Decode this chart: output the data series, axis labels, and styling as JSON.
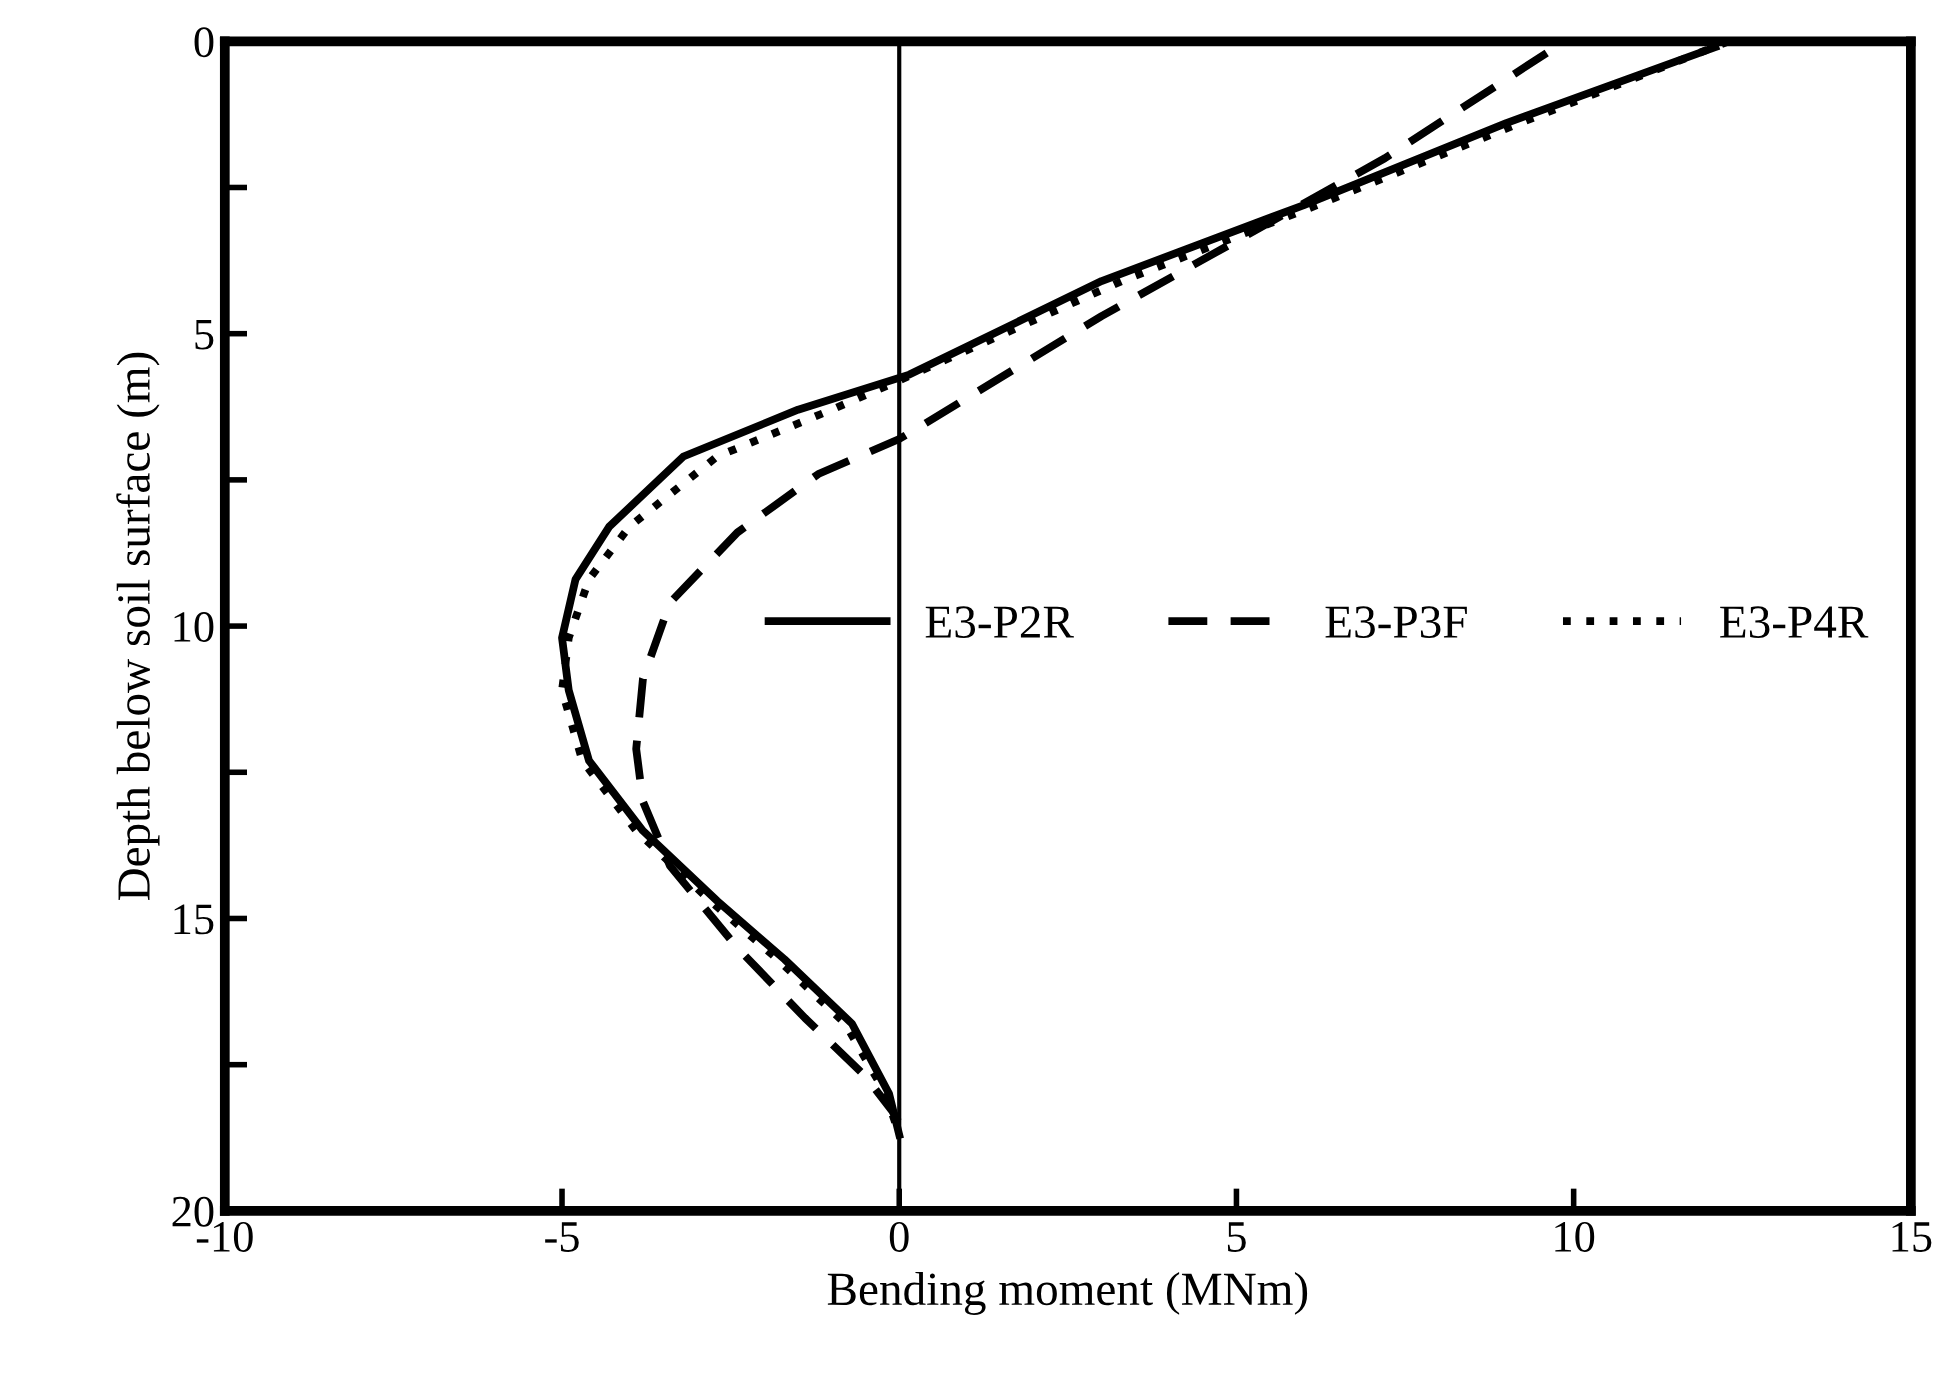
{
  "chart_data": {
    "type": "line",
    "xlabel": "Bending moment (MNm)",
    "ylabel": "Depth below soil surface (m)",
    "xlim": [
      -10,
      15
    ],
    "xticks": [
      -10,
      -5,
      0,
      5,
      10,
      15
    ],
    "ylim": [
      20,
      0
    ],
    "yticks": [
      0,
      {
        "value": 2.5,
        "label": null
      },
      5,
      {
        "value": 7.5,
        "label": null
      },
      10,
      {
        "value": 12.5,
        "label": null
      },
      15,
      {
        "value": 17.5,
        "label": null
      },
      20
    ],
    "grid": false,
    "legend": "right",
    "marker": "none",
    "ref_lines": [
      {
        "axis": "x",
        "value": 0,
        "color": "#000000",
        "line_style": "solid"
      }
    ],
    "series": [
      {
        "name": "E3-P2R",
        "color": "#000000",
        "line_style": "solid",
        "x": [
          12.1,
          9.0,
          6.0,
          3.0,
          0.15,
          -1.5,
          -3.2,
          -4.3,
          -4.8,
          -5.0,
          -4.9,
          -4.6,
          -3.8,
          -2.7,
          -1.7,
          -0.7,
          -0.15,
          0
        ],
        "values": [
          0.1,
          1.4,
          2.8,
          4.1,
          5.7,
          6.3,
          7.1,
          8.3,
          9.2,
          10.2,
          11.1,
          12.3,
          13.5,
          14.7,
          15.7,
          16.8,
          18.0,
          18.7
        ]
      },
      {
        "name": "E3-P3F",
        "color": "#000000",
        "line_style": "dashed",
        "x": [
          9.6,
          7.2,
          3.0,
          0.15,
          0,
          -1.2,
          -2.4,
          -3.4,
          -3.8,
          -3.9,
          -3.8,
          -3.4,
          -2.4,
          -1.4,
          -0.5,
          -0.1,
          0
        ],
        "values": [
          0.2,
          2.0,
          4.7,
          6.7,
          6.8,
          7.4,
          8.4,
          9.6,
          10.9,
          12.1,
          13.0,
          14.1,
          15.5,
          16.7,
          17.7,
          18.3,
          18.5
        ]
      },
      {
        "name": "E3-P4R",
        "color": "#000000",
        "line_style": "dotted",
        "x": [
          12.3,
          9.2,
          6.2,
          3.3,
          0,
          -1.0,
          -2.7,
          -4.0,
          -4.6,
          -4.9,
          -5.0,
          -4.7,
          -3.9,
          -2.8,
          -1.8,
          -0.8,
          -0.2,
          0
        ],
        "values": [
          0,
          1.4,
          2.8,
          4.1,
          5.8,
          6.3,
          7.1,
          8.3,
          9.2,
          10.2,
          11.1,
          12.3,
          13.5,
          14.7,
          15.7,
          16.8,
          18.0,
          18.7
        ]
      }
    ]
  }
}
